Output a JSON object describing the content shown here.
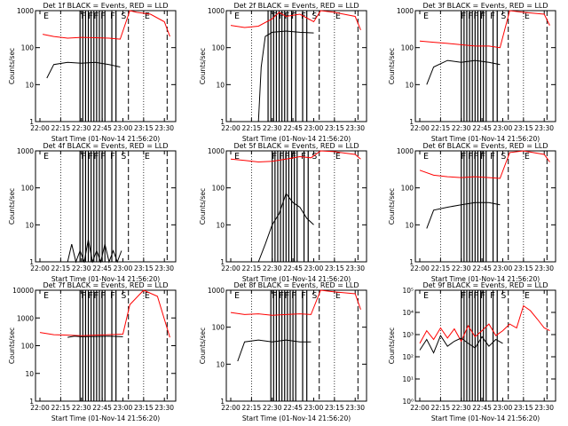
{
  "colors": {
    "events": "#000000",
    "lld": "#ff0000",
    "background": "#ffffff"
  },
  "chart_data": [
    {
      "type": "line",
      "title": "Det 1f BLACK = Events, RED = LLD",
      "xlabel": "Start Time (01-Nov-14 21:56:20)",
      "ylabel": "Counts/sec",
      "xlim": [
        "22:00",
        "23:35"
      ],
      "ylim": [
        1,
        1000
      ],
      "yscale": "log",
      "x_ticks": [
        "22:00",
        "22:15",
        "22:30",
        "22:45",
        "23:00",
        "23:15",
        "23:30"
      ],
      "y_ticks": [
        "1",
        "10",
        "100",
        "1000"
      ],
      "flags": [
        "E",
        "F",
        "F",
        "F",
        "F",
        "F",
        "S",
        "E"
      ],
      "series": [
        {
          "color": "#ff0000",
          "x": [
            "22:02",
            "22:10",
            "22:20",
            "22:30",
            "22:40",
            "22:50",
            "22:58",
            "23:05",
            "23:10",
            "23:20",
            "23:30",
            "23:34"
          ],
          "values": [
            230,
            200,
            180,
            190,
            185,
            180,
            170,
            1000,
            900,
            800,
            500,
            200
          ]
        },
        {
          "color": "#000000",
          "x": [
            "22:05",
            "22:10",
            "22:20",
            "22:30",
            "22:40",
            "22:50",
            "22:58"
          ],
          "values": [
            15,
            35,
            40,
            38,
            40,
            35,
            30
          ]
        }
      ],
      "event_lines": [
        "22:29",
        "22:31",
        "22:33",
        "22:35",
        "22:37",
        "22:39",
        "22:41",
        "22:43",
        "22:45",
        "22:47",
        "22:52",
        "22:55"
      ]
    },
    {
      "type": "line",
      "title": "Det 2f BLACK = Events, RED = LLD",
      "xlabel": "Start Time (01-Nov-14 21:56:20)",
      "ylabel": "Counts/sec",
      "xlim": [
        "22:00",
        "23:35"
      ],
      "ylim": [
        1,
        1000
      ],
      "yscale": "log",
      "x_ticks": [
        "22:00",
        "22:15",
        "22:30",
        "22:45",
        "23:00",
        "23:15",
        "23:30"
      ],
      "y_ticks": [
        "1",
        "10",
        "100",
        "1000"
      ],
      "flags": [
        "E",
        "F",
        "F",
        "F",
        "F",
        "F",
        "S",
        "E"
      ],
      "series": [
        {
          "color": "#ff0000",
          "x": [
            "22:00",
            "22:10",
            "22:20",
            "22:30",
            "22:35",
            "22:40",
            "22:50",
            "23:00",
            "23:05",
            "23:15",
            "23:30",
            "23:34"
          ],
          "values": [
            400,
            350,
            380,
            600,
            900,
            700,
            800,
            500,
            1000,
            900,
            700,
            300
          ]
        },
        {
          "color": "#000000",
          "x": [
            "22:20",
            "22:22",
            "22:25",
            "22:30",
            "22:40",
            "22:50",
            "23:00"
          ],
          "values": [
            1,
            30,
            200,
            260,
            280,
            260,
            250
          ]
        }
      ],
      "event_lines": [
        "22:27",
        "22:29",
        "22:31",
        "22:33",
        "22:35",
        "22:37",
        "22:39",
        "22:41",
        "22:44",
        "22:47",
        "22:52",
        "22:55"
      ]
    },
    {
      "type": "line",
      "title": "Det 3f BLACK = Events, RED = LLD",
      "xlabel": "Start Time (01-Nov-14 21:56:20)",
      "ylabel": "Counts/sec",
      "xlim": [
        "22:00",
        "23:35"
      ],
      "ylim": [
        1,
        1000
      ],
      "yscale": "log",
      "x_ticks": [
        "22:00",
        "22:15",
        "22:30",
        "22:45",
        "23:00",
        "23:15",
        "23:30"
      ],
      "y_ticks": [
        "1",
        "10",
        "100",
        "1000"
      ],
      "flags": [
        "E",
        "F",
        "F",
        "F",
        "F",
        "F",
        "S",
        "E"
      ],
      "series": [
        {
          "color": "#ff0000",
          "x": [
            "22:00",
            "22:10",
            "22:20",
            "22:30",
            "22:40",
            "22:50",
            "22:58",
            "23:05",
            "23:15",
            "23:30",
            "23:34"
          ],
          "values": [
            150,
            140,
            130,
            120,
            110,
            110,
            100,
            1000,
            900,
            800,
            400
          ]
        },
        {
          "color": "#000000",
          "x": [
            "22:05",
            "22:10",
            "22:20",
            "22:30",
            "22:40",
            "22:50",
            "22:58"
          ],
          "values": [
            10,
            30,
            45,
            40,
            45,
            40,
            35
          ]
        }
      ],
      "event_lines": [
        "22:30",
        "22:32",
        "22:34",
        "22:36",
        "22:38",
        "22:40",
        "22:42",
        "22:44",
        "22:46",
        "22:48",
        "22:53",
        "22:56"
      ]
    },
    {
      "type": "line",
      "title": "Det 4f BLACK = Events, RED = LLD",
      "xlabel": "Start Time (01-Nov-14 21:56:20)",
      "ylabel": "Counts/sec",
      "xlim": [
        "22:00",
        "23:35"
      ],
      "ylim": [
        1,
        1000
      ],
      "yscale": "log",
      "x_ticks": [
        "22:00",
        "22:15",
        "22:30",
        "22:45",
        "23:00",
        "23:15",
        "23:30"
      ],
      "y_ticks": [
        "1",
        "10",
        "100",
        "1000"
      ],
      "flags": [
        "E",
        "F",
        "F",
        "F",
        "F",
        "F",
        "S",
        "E"
      ],
      "series": [
        {
          "color": "#000000",
          "x": [
            "22:20",
            "22:23",
            "22:26",
            "22:29",
            "22:32",
            "22:35",
            "22:38",
            "22:41",
            "22:44",
            "22:47",
            "22:50",
            "22:53",
            "22:56",
            "22:59"
          ],
          "values": [
            1,
            3,
            1,
            2,
            1,
            4,
            1,
            2,
            1,
            3,
            1,
            2,
            1,
            2
          ]
        }
      ],
      "event_lines": [
        "22:29",
        "22:31",
        "22:33",
        "22:35",
        "22:37",
        "22:39",
        "22:41",
        "22:43",
        "22:45",
        "22:47",
        "22:52",
        "22:55"
      ]
    },
    {
      "type": "line",
      "title": "Det 5f BLACK = Events, RED = LLD",
      "xlabel": "Start Time (01-Nov-14 21:56:20)",
      "ylabel": "Counts/sec",
      "xlim": [
        "22:00",
        "23:35"
      ],
      "ylim": [
        1,
        1000
      ],
      "yscale": "log",
      "x_ticks": [
        "22:00",
        "22:15",
        "22:30",
        "22:45",
        "23:00",
        "23:15",
        "23:30"
      ],
      "y_ticks": [
        "1",
        "10",
        "100",
        "1000"
      ],
      "flags": [
        "E",
        "F",
        "F",
        "F",
        "F",
        "F",
        "S",
        "E"
      ],
      "series": [
        {
          "color": "#ff0000",
          "x": [
            "22:00",
            "22:10",
            "22:20",
            "22:30",
            "22:40",
            "22:50",
            "22:58",
            "23:05",
            "23:15",
            "23:30",
            "23:34"
          ],
          "values": [
            600,
            550,
            500,
            520,
            600,
            700,
            650,
            1000,
            950,
            800,
            600
          ]
        },
        {
          "color": "#000000",
          "x": [
            "22:20",
            "22:25",
            "22:30",
            "22:35",
            "22:40",
            "22:45",
            "22:50",
            "22:55",
            "23:00"
          ],
          "values": [
            1,
            3,
            10,
            20,
            70,
            40,
            30,
            15,
            10
          ]
        }
      ],
      "event_lines": [
        "22:30",
        "22:32",
        "22:34",
        "22:36",
        "22:38",
        "22:40",
        "22:42",
        "22:44",
        "22:46",
        "22:48",
        "22:53",
        "22:56"
      ]
    },
    {
      "type": "line",
      "title": "Det 6f BLACK = Events, RED = LLD",
      "xlabel": "Start Time (01-Nov-14 21:56:20)",
      "ylabel": "Counts/sec",
      "xlim": [
        "22:00",
        "23:35"
      ],
      "ylim": [
        1,
        1000
      ],
      "yscale": "log",
      "x_ticks": [
        "22:00",
        "22:15",
        "22:30",
        "22:45",
        "23:00",
        "23:15",
        "23:30"
      ],
      "y_ticks": [
        "1",
        "10",
        "100",
        "1000"
      ],
      "flags": [
        "E",
        "F",
        "F",
        "F",
        "F",
        "F",
        "S",
        "E"
      ],
      "series": [
        {
          "color": "#ff0000",
          "x": [
            "22:00",
            "22:10",
            "22:20",
            "22:30",
            "22:40",
            "22:50",
            "22:58",
            "23:05",
            "23:15",
            "23:30",
            "23:34"
          ],
          "values": [
            300,
            220,
            200,
            190,
            200,
            190,
            180,
            900,
            1000,
            800,
            500
          ]
        },
        {
          "color": "#000000",
          "x": [
            "22:05",
            "22:10",
            "22:20",
            "22:30",
            "22:40",
            "22:50",
            "22:58"
          ],
          "values": [
            8,
            25,
            30,
            35,
            40,
            40,
            35
          ]
        }
      ],
      "event_lines": [
        "22:30",
        "22:32",
        "22:34",
        "22:36",
        "22:38",
        "22:40",
        "22:42",
        "22:44",
        "22:46",
        "22:48",
        "22:53",
        "22:56"
      ]
    },
    {
      "type": "line",
      "title": "Det 7f BLACK = Events, RED = LLD",
      "xlabel": "Start Time (01-Nov-14 21:56:20)",
      "ylabel": "Counts/sec",
      "xlim": [
        "22:00",
        "23:35"
      ],
      "ylim": [
        1,
        10000
      ],
      "yscale": "log",
      "x_ticks": [
        "22:00",
        "22:15",
        "22:30",
        "22:45",
        "23:00",
        "23:15",
        "23:30"
      ],
      "y_ticks": [
        "1",
        "10",
        "100",
        "1000",
        "10000"
      ],
      "flags": [
        "E",
        "F",
        "F",
        "F",
        "F",
        "F",
        "S",
        "E"
      ],
      "series": [
        {
          "color": "#ff0000",
          "x": [
            "22:00",
            "22:10",
            "22:20",
            "22:30",
            "22:40",
            "22:50",
            "23:00",
            "23:05",
            "23:15",
            "23:25",
            "23:34"
          ],
          "values": [
            300,
            250,
            240,
            230,
            240,
            250,
            260,
            3000,
            10000,
            6000,
            200
          ]
        },
        {
          "color": "#000000",
          "x": [
            "22:20",
            "22:25",
            "22:30",
            "22:40",
            "22:50",
            "23:00"
          ],
          "values": [
            200,
            220,
            210,
            215,
            220,
            210
          ]
        }
      ],
      "event_lines": [
        "22:29",
        "22:31",
        "22:33",
        "22:35",
        "22:37",
        "22:39",
        "22:41",
        "22:43",
        "22:45",
        "22:47",
        "22:52",
        "22:55"
      ]
    },
    {
      "type": "line",
      "title": "Det 8f BLACK = Events, RED = LLD",
      "xlabel": "Start Time (01-Nov-14 21:56:20)",
      "ylabel": "Counts/sec",
      "xlim": [
        "22:00",
        "23:35"
      ],
      "ylim": [
        1,
        1000
      ],
      "yscale": "log",
      "x_ticks": [
        "22:00",
        "22:15",
        "22:30",
        "22:45",
        "23:00",
        "23:15",
        "23:30"
      ],
      "y_ticks": [
        "1",
        "10",
        "100",
        "1000"
      ],
      "flags": [
        "E",
        "F",
        "F",
        "F",
        "F",
        "F",
        "S",
        "E"
      ],
      "series": [
        {
          "color": "#ff0000",
          "x": [
            "22:00",
            "22:10",
            "22:20",
            "22:30",
            "22:40",
            "22:50",
            "22:58",
            "23:05",
            "23:15",
            "23:30",
            "23:34"
          ],
          "values": [
            250,
            220,
            230,
            210,
            220,
            230,
            220,
            1000,
            900,
            800,
            300
          ]
        },
        {
          "color": "#000000",
          "x": [
            "22:05",
            "22:10",
            "22:20",
            "22:30",
            "22:40",
            "22:50",
            "22:58"
          ],
          "values": [
            12,
            40,
            45,
            40,
            45,
            40,
            40
          ]
        }
      ],
      "event_lines": [
        "22:29",
        "22:31",
        "22:33",
        "22:35",
        "22:37",
        "22:39",
        "22:41",
        "22:43",
        "22:45",
        "22:47",
        "22:52",
        "22:55"
      ]
    },
    {
      "type": "line",
      "title": "Det 9f BLACK = Events, RED = LLD",
      "xlabel": "Start Time (01-Nov-14 21:56:20)",
      "ylabel": "Counts/sec",
      "xlim": [
        "22:00",
        "23:35"
      ],
      "ylim": [
        1,
        100000
      ],
      "yscale": "log",
      "x_ticks": [
        "22:00",
        "22:15",
        "22:30",
        "22:45",
        "23:00",
        "23:15",
        "23:30"
      ],
      "y_ticks": [
        "10⁰",
        "10¹",
        "10²",
        "10³",
        "10⁴",
        "10⁵"
      ],
      "flags": [
        "E",
        "F",
        "F",
        "F",
        "F",
        "F",
        "S",
        "E"
      ],
      "series": [
        {
          "color": "#ff0000",
          "x": [
            "22:00",
            "22:05",
            "22:10",
            "22:15",
            "22:20",
            "22:25",
            "22:30",
            "22:35",
            "22:40",
            "22:45",
            "22:50",
            "22:55",
            "23:00",
            "23:05",
            "23:10",
            "23:15",
            "23:20",
            "23:25",
            "23:30",
            "23:34"
          ],
          "values": [
            400,
            1500,
            600,
            2000,
            700,
            1800,
            500,
            2500,
            800,
            1500,
            3000,
            900,
            1500,
            3000,
            2000,
            20000,
            12000,
            5000,
            2000,
            1500
          ]
        },
        {
          "color": "#000000",
          "x": [
            "22:00",
            "22:05",
            "22:10",
            "22:15",
            "22:20",
            "22:25",
            "22:30",
            "22:35",
            "22:40",
            "22:45",
            "22:50",
            "22:55",
            "23:00"
          ],
          "values": [
            200,
            600,
            150,
            900,
            300,
            500,
            700,
            400,
            250,
            800,
            300,
            600,
            400
          ]
        }
      ],
      "event_lines": [
        "22:30",
        "22:32",
        "22:34",
        "22:36",
        "22:38",
        "22:40",
        "22:42",
        "22:44",
        "22:46",
        "22:48",
        "22:53",
        "22:56"
      ]
    }
  ]
}
